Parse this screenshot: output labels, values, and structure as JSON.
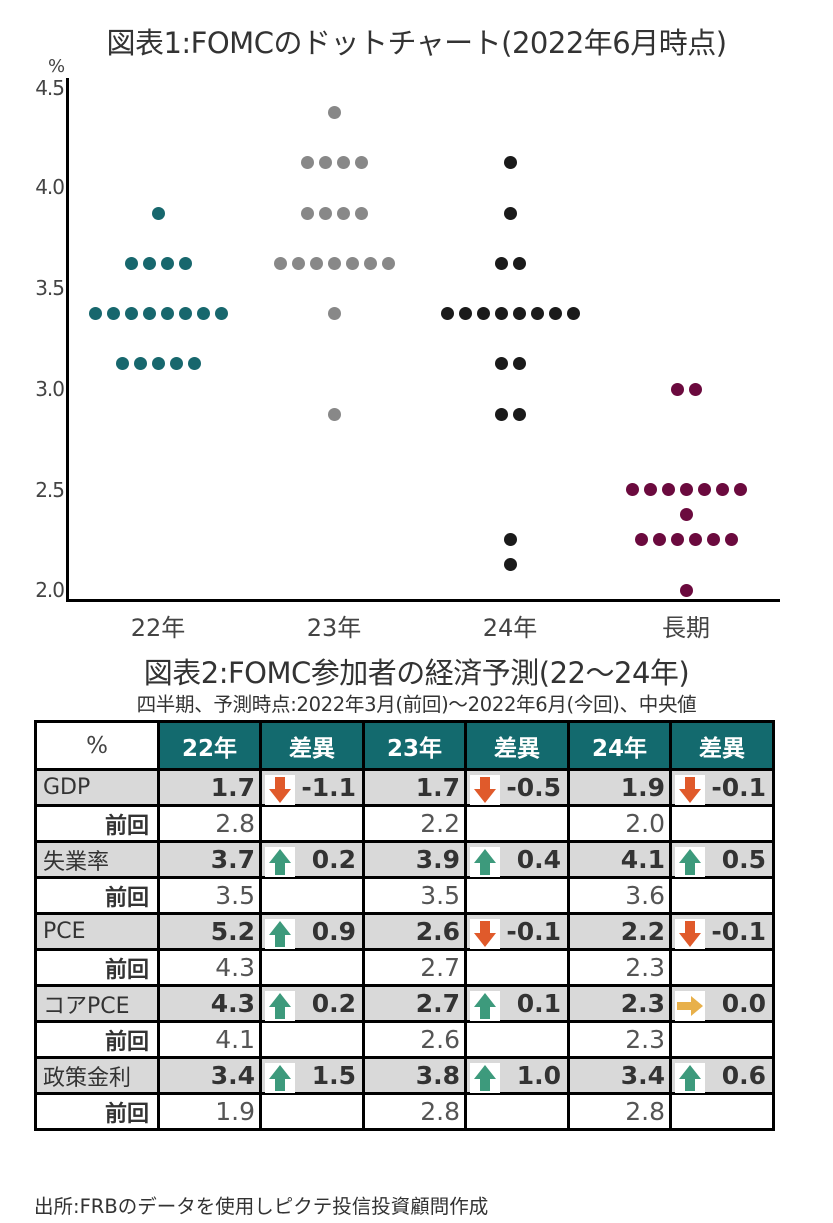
{
  "chart1": {
    "title": "図表1:FOMCのドットチャート(2022年6月時点)",
    "ylabel": "%",
    "yticks": [
      "4.5",
      "4.0",
      "3.5",
      "3.0",
      "2.5",
      "2.0"
    ],
    "xticks": [
      "22年",
      "23年",
      "24年",
      "長期"
    ],
    "colors": {
      "22年": "#17676d",
      "23年": "#888888",
      "24年": "#1a1a1a",
      "長期": "#6b0a3e"
    }
  },
  "chart_data": [
    {
      "type": "scatter",
      "title": "図表1:FOMCのドットチャート(2022年6月時点)",
      "xlabel": "",
      "ylabel": "%",
      "ylim": [
        2.0,
        4.5
      ],
      "categories": [
        "22年",
        "23年",
        "24年",
        "長期"
      ],
      "grid": false,
      "legend": null,
      "series": [
        {
          "name": "22年",
          "color": "#17676d",
          "dots": [
            {
              "y": 3.875,
              "count": 1
            },
            {
              "y": 3.625,
              "count": 4
            },
            {
              "y": 3.375,
              "count": 8
            },
            {
              "y": 3.125,
              "count": 5
            }
          ]
        },
        {
          "name": "23年",
          "color": "#888888",
          "dots": [
            {
              "y": 4.375,
              "count": 1
            },
            {
              "y": 4.125,
              "count": 4
            },
            {
              "y": 3.875,
              "count": 4
            },
            {
              "y": 3.625,
              "count": 7
            },
            {
              "y": 3.375,
              "count": 1
            },
            {
              "y": 2.875,
              "count": 1
            }
          ]
        },
        {
          "name": "24年",
          "color": "#1a1a1a",
          "dots": [
            {
              "y": 4.125,
              "count": 1
            },
            {
              "y": 3.875,
              "count": 1
            },
            {
              "y": 3.625,
              "count": 2
            },
            {
              "y": 3.375,
              "count": 8
            },
            {
              "y": 3.125,
              "count": 2
            },
            {
              "y": 2.875,
              "count": 2
            },
            {
              "y": 2.25,
              "count": 1
            },
            {
              "y": 2.125,
              "count": 1
            }
          ]
        },
        {
          "name": "長期",
          "color": "#6b0a3e",
          "dots": [
            {
              "y": 3.0,
              "count": 2
            },
            {
              "y": 2.5,
              "count": 7
            },
            {
              "y": 2.375,
              "count": 1
            },
            {
              "y": 2.25,
              "count": 6
            },
            {
              "y": 2.0,
              "count": 1
            }
          ]
        }
      ]
    },
    {
      "type": "table",
      "title": "図表2:FOMC参加者の経済予測(22〜24年)",
      "subtitle": "四半期、予測時点:2022年3月(前回)〜2022年6月(今回)、中央値",
      "columns": [
        "%",
        "22年",
        "差異",
        "23年",
        "差異",
        "24年",
        "差異"
      ],
      "rows": [
        [
          "GDP",
          "1.7",
          "-1.1",
          "1.7",
          "-0.5",
          "1.9",
          "-0.1"
        ],
        [
          "前回",
          "2.8",
          "",
          "2.2",
          "",
          "2.0",
          ""
        ],
        [
          "失業率",
          "3.7",
          "0.2",
          "3.9",
          "0.4",
          "4.1",
          "0.5"
        ],
        [
          "前回",
          "3.5",
          "",
          "3.5",
          "",
          "3.6",
          ""
        ],
        [
          "PCE",
          "5.2",
          "0.9",
          "2.6",
          "-0.1",
          "2.2",
          "-0.1"
        ],
        [
          "前回",
          "4.3",
          "",
          "2.7",
          "",
          "2.3",
          ""
        ],
        [
          "コアPCE",
          "4.3",
          "0.2",
          "2.7",
          "0.1",
          "2.3",
          "0.0"
        ],
        [
          "前回",
          "4.1",
          "",
          "2.6",
          "",
          "2.3",
          ""
        ],
        [
          "政策金利",
          "3.4",
          "1.5",
          "3.8",
          "1.0",
          "3.4",
          "0.6"
        ],
        [
          "前回",
          "1.9",
          "",
          "2.8",
          "",
          "2.8",
          ""
        ]
      ]
    }
  ],
  "table": {
    "title": "図表2:FOMC参加者の経済予測(22〜24年)",
    "subtitle": "四半期、予測時点:2022年3月(前回)〜2022年6月(今回)、中央値",
    "header": [
      "%",
      "22年",
      "差異",
      "23年",
      "差異",
      "24年",
      "差異"
    ],
    "header_color": "#136a6e",
    "arrow_colors": {
      "up": "#3d9a7c",
      "down": "#e05a2b",
      "flat": "#e8b04a"
    },
    "rows": [
      {
        "label": "GDP",
        "type": "main",
        "cells": [
          {
            "v": "1.7",
            "d": "-1.1",
            "icon": "down"
          },
          {
            "v": "1.7",
            "d": "-0.5",
            "icon": "down"
          },
          {
            "v": "1.9",
            "d": "-0.1",
            "icon": "down"
          }
        ]
      },
      {
        "label": "前回",
        "type": "prev",
        "cells": [
          {
            "v": "2.8"
          },
          {
            "v": "2.2"
          },
          {
            "v": "2.0"
          }
        ]
      },
      {
        "label": "失業率",
        "type": "main",
        "cells": [
          {
            "v": "3.7",
            "d": "0.2",
            "icon": "up"
          },
          {
            "v": "3.9",
            "d": "0.4",
            "icon": "up"
          },
          {
            "v": "4.1",
            "d": "0.5",
            "icon": "up"
          }
        ]
      },
      {
        "label": "前回",
        "type": "prev",
        "cells": [
          {
            "v": "3.5"
          },
          {
            "v": "3.5"
          },
          {
            "v": "3.6"
          }
        ]
      },
      {
        "label": "PCE",
        "type": "main",
        "cells": [
          {
            "v": "5.2",
            "d": "0.9",
            "icon": "up"
          },
          {
            "v": "2.6",
            "d": "-0.1",
            "icon": "down"
          },
          {
            "v": "2.2",
            "d": "-0.1",
            "icon": "down"
          }
        ]
      },
      {
        "label": "前回",
        "type": "prev",
        "cells": [
          {
            "v": "4.3"
          },
          {
            "v": "2.7"
          },
          {
            "v": "2.3"
          }
        ]
      },
      {
        "label": "コアPCE",
        "type": "main",
        "cells": [
          {
            "v": "4.3",
            "d": "0.2",
            "icon": "up"
          },
          {
            "v": "2.7",
            "d": "0.1",
            "icon": "up"
          },
          {
            "v": "2.3",
            "d": "0.0",
            "icon": "flat"
          }
        ]
      },
      {
        "label": "前回",
        "type": "prev",
        "cells": [
          {
            "v": "4.1"
          },
          {
            "v": "2.6"
          },
          {
            "v": "2.3"
          }
        ]
      },
      {
        "label": "政策金利",
        "type": "main",
        "cells": [
          {
            "v": "3.4",
            "d": "1.5",
            "icon": "up"
          },
          {
            "v": "3.8",
            "d": "1.0",
            "icon": "up"
          },
          {
            "v": "3.4",
            "d": "0.6",
            "icon": "up"
          }
        ]
      },
      {
        "label": "前回",
        "type": "prev",
        "cells": [
          {
            "v": "1.9"
          },
          {
            "v": "2.8"
          },
          {
            "v": "2.8"
          }
        ]
      }
    ]
  },
  "source": "出所:FRBのデータを使用しピクテ投信投資顧問作成"
}
